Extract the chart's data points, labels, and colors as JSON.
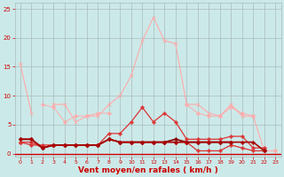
{
  "xlabel": "Vent moyen/en rafales ( km/h )",
  "background_color": "#cce9e9",
  "grid_color": "#aabbbb",
  "x": [
    0,
    1,
    2,
    3,
    4,
    5,
    6,
    7,
    8,
    9,
    10,
    11,
    12,
    13,
    14,
    15,
    16,
    17,
    18,
    19,
    20,
    21,
    22,
    23
  ],
  "series": [
    {
      "y": [
        15.5,
        7.0,
        null,
        8.5,
        8.5,
        5.5,
        6.5,
        6.5,
        8.5,
        10.0,
        13.5,
        19.5,
        23.5,
        19.5,
        19.0,
        8.5,
        8.5,
        7.0,
        6.5,
        8.5,
        6.5,
        6.5,
        0.5,
        0.5
      ],
      "color": "#ffaaaa",
      "marker": "x",
      "lw": 0.8,
      "ms": 3.0
    },
    {
      "y": [
        2.0,
        null,
        8.5,
        8.0,
        5.5,
        6.5,
        6.5,
        7.0,
        7.0,
        null,
        null,
        null,
        null,
        null,
        null,
        8.5,
        7.0,
        6.5,
        6.5,
        8.0,
        7.0,
        6.5,
        null,
        0.5
      ],
      "color": "#ffaaaa",
      "marker": "P",
      "lw": 0.7,
      "ms": 2.5
    },
    {
      "y": [
        2.0,
        1.5,
        1.5,
        1.5,
        1.5,
        1.5,
        1.5,
        1.5,
        3.5,
        3.5,
        5.5,
        8.0,
        5.5,
        7.0,
        5.5,
        2.5,
        2.5,
        2.5,
        2.5,
        3.0,
        3.0,
        1.0,
        1.0,
        null
      ],
      "color": "#dd3333",
      "marker": "P",
      "lw": 0.9,
      "ms": 2.5
    },
    {
      "y": [
        2.0,
        2.0,
        1.0,
        1.5,
        1.5,
        1.5,
        1.5,
        1.5,
        2.5,
        2.0,
        2.0,
        2.0,
        2.0,
        2.0,
        2.0,
        2.0,
        0.5,
        0.5,
        0.5,
        1.5,
        1.0,
        0.5,
        0.5,
        null
      ],
      "color": "#dd3333",
      "marker": "P",
      "lw": 0.9,
      "ms": 2.5
    },
    {
      "y": [
        2.5,
        2.5,
        1.0,
        1.5,
        1.5,
        1.5,
        1.5,
        1.5,
        2.5,
        2.0,
        2.0,
        2.0,
        2.0,
        2.0,
        2.5,
        2.0,
        2.0,
        2.0,
        2.0,
        2.0,
        null,
        null,
        0.5,
        null
      ],
      "color": "#880000",
      "marker": "P",
      "lw": 1.2,
      "ms": 2.5
    },
    {
      "y": [
        2.5,
        2.5,
        1.0,
        1.5,
        1.5,
        1.5,
        1.5,
        1.5,
        2.5,
        2.0,
        2.0,
        2.0,
        2.0,
        2.0,
        2.0,
        2.0,
        2.0,
        2.0,
        2.0,
        2.0,
        2.0,
        2.0,
        0.5,
        null
      ],
      "color": "#aa0000",
      "marker": "P",
      "lw": 1.2,
      "ms": 2.5
    }
  ],
  "ylim": [
    -0.5,
    26
  ],
  "xlim": [
    -0.5,
    23.5
  ],
  "yticks": [
    0,
    5,
    10,
    15,
    20,
    25
  ],
  "xticks": [
    0,
    1,
    2,
    3,
    4,
    5,
    6,
    7,
    8,
    9,
    10,
    11,
    12,
    13,
    14,
    15,
    16,
    17,
    18,
    19,
    20,
    21,
    22,
    23
  ],
  "tick_color": "#cc0000",
  "tick_fontsize": 5.0,
  "xlabel_fontsize": 6.5,
  "xlabel_color": "#cc0000",
  "xlabel_weight": "bold"
}
